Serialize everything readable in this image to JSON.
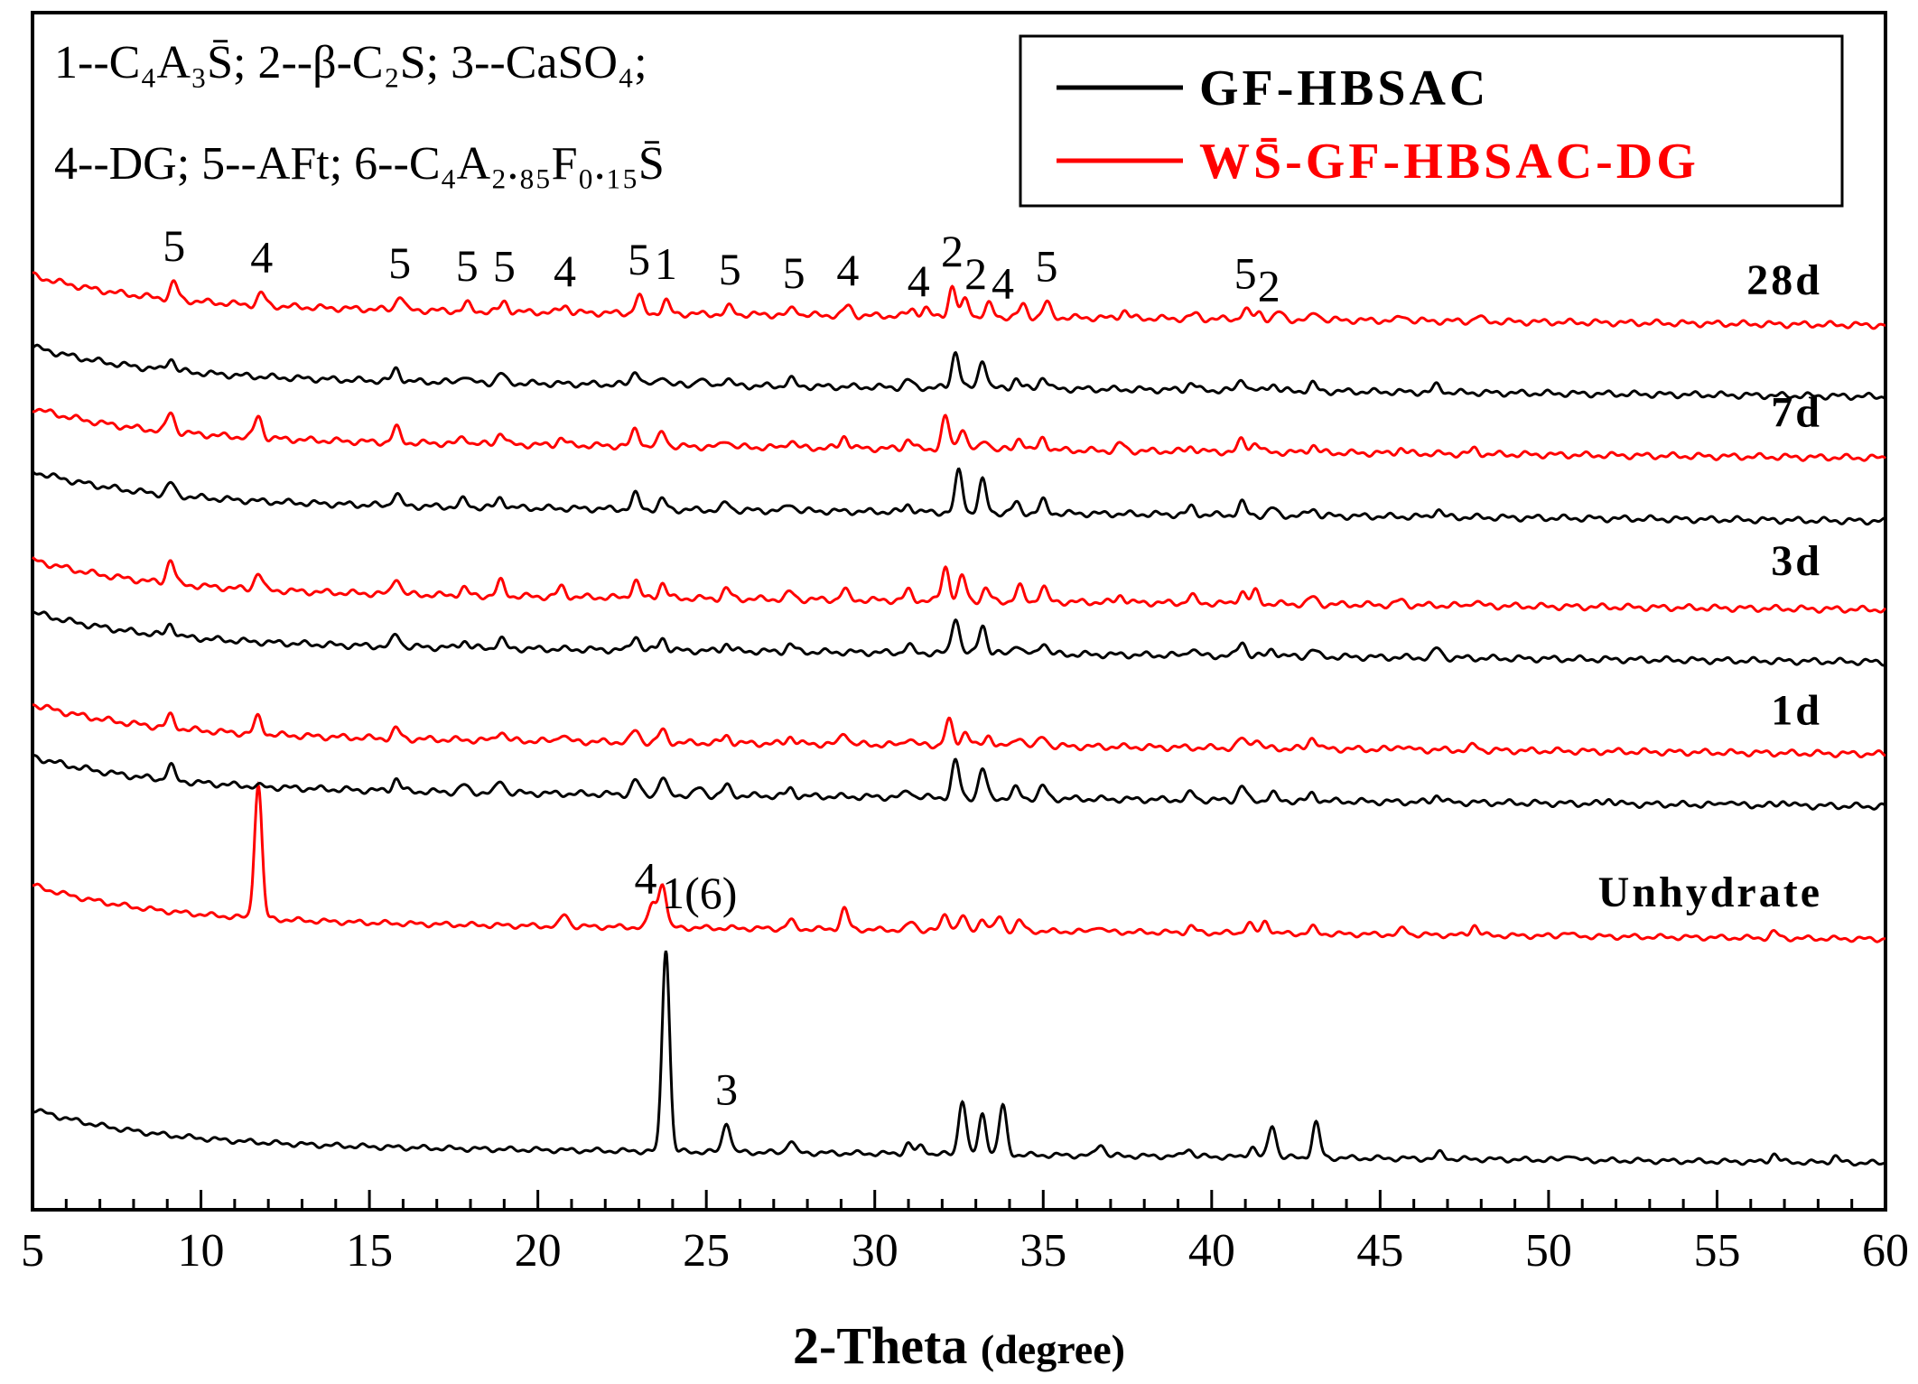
{
  "chart_data": {
    "type": "line",
    "xlabel": "2-Theta",
    "xlabel_unit": "(degree)",
    "xlim": [
      5,
      60
    ],
    "x_ticks": [
      "5",
      "10",
      "15",
      "20",
      "25",
      "30",
      "35",
      "40",
      "45",
      "50",
      "55",
      "60"
    ],
    "grid": false,
    "y_axis_labels": false,
    "legend": {
      "placement": "top-right",
      "entries": [
        {
          "name": "GF-HBSAC",
          "color": "#000000"
        },
        {
          "name": "WS̄-GF-HBSAC-DG",
          "color": "#ff0000"
        }
      ]
    },
    "phase_key": [
      {
        "line": "1--C₄A₃S̄; 2--β-C₂S; 3--CaSO₄;"
      },
      {
        "line": "4--DG; 5--AFt; 6--C₄A₂.₈₅F₀.₁₅S̄"
      }
    ],
    "series": [
      {
        "name": "GF-HBSAC",
        "group": "Unhydrate",
        "color": "#000000",
        "baseline": 0.02,
        "peaks": [
          [
            23.8,
            1.0
          ],
          [
            25.6,
            0.15
          ],
          [
            27.5,
            0.06
          ],
          [
            31.0,
            0.05
          ],
          [
            31.4,
            0.04
          ],
          [
            32.6,
            0.27
          ],
          [
            33.2,
            0.2
          ],
          [
            33.8,
            0.24
          ],
          [
            36.7,
            0.06
          ],
          [
            39.3,
            0.04
          ],
          [
            41.2,
            0.05
          ],
          [
            41.8,
            0.16
          ],
          [
            43.1,
            0.17
          ],
          [
            46.8,
            0.03
          ],
          [
            50.6,
            0.03
          ],
          [
            56.7,
            0.04
          ],
          [
            58.5,
            0.03
          ]
        ]
      },
      {
        "name": "WS̄-GF-HBSAC-DG",
        "group": "Unhydrate",
        "color": "#ff0000",
        "baseline": 0.02,
        "peaks": [
          [
            11.7,
            0.66
          ],
          [
            20.8,
            0.06
          ],
          [
            23.4,
            0.12
          ],
          [
            23.7,
            0.22
          ],
          [
            27.5,
            0.04
          ],
          [
            29.1,
            0.1
          ],
          [
            31.1,
            0.04
          ],
          [
            32.1,
            0.08
          ],
          [
            32.6,
            0.07
          ],
          [
            33.2,
            0.06
          ],
          [
            33.7,
            0.07
          ],
          [
            34.3,
            0.05
          ],
          [
            36.6,
            0.03
          ],
          [
            39.4,
            0.03
          ],
          [
            41.1,
            0.05
          ],
          [
            41.6,
            0.06
          ],
          [
            43.0,
            0.03
          ],
          [
            45.7,
            0.03
          ],
          [
            47.8,
            0.05
          ],
          [
            50.5,
            0.02
          ],
          [
            56.7,
            0.03
          ]
        ]
      },
      {
        "name": "GF-HBSAC",
        "group": "1d",
        "color": "#000000",
        "baseline": 0.0,
        "peaks": [
          [
            9.1,
            0.06
          ],
          [
            15.8,
            0.05
          ],
          [
            17.8,
            0.03
          ],
          [
            18.9,
            0.05
          ],
          [
            22.9,
            0.06
          ],
          [
            23.7,
            0.07
          ],
          [
            24.8,
            0.03
          ],
          [
            25.6,
            0.04
          ],
          [
            27.5,
            0.03
          ],
          [
            31.0,
            0.03
          ],
          [
            32.4,
            0.15
          ],
          [
            33.2,
            0.12
          ],
          [
            34.2,
            0.04
          ],
          [
            35.0,
            0.05
          ],
          [
            39.4,
            0.03
          ],
          [
            40.9,
            0.06
          ],
          [
            41.8,
            0.03
          ],
          [
            43.0,
            0.03
          ],
          [
            46.7,
            0.03
          ],
          [
            51.8,
            0.02
          ],
          [
            55.3,
            0.02
          ],
          [
            57.0,
            0.02
          ]
        ]
      },
      {
        "name": "WS̄-GF-HBSAC-DG",
        "group": "1d",
        "color": "#ff0000",
        "baseline": 0.0,
        "peaks": [
          [
            9.1,
            0.05
          ],
          [
            11.7,
            0.07
          ],
          [
            15.8,
            0.04
          ],
          [
            18.9,
            0.04
          ],
          [
            20.7,
            0.03
          ],
          [
            22.9,
            0.05
          ],
          [
            23.7,
            0.05
          ],
          [
            25.6,
            0.03
          ],
          [
            27.5,
            0.03
          ],
          [
            29.1,
            0.05
          ],
          [
            31.0,
            0.03
          ],
          [
            32.2,
            0.1
          ],
          [
            32.7,
            0.06
          ],
          [
            33.4,
            0.04
          ],
          [
            34.3,
            0.04
          ],
          [
            35.0,
            0.04
          ],
          [
            40.9,
            0.04
          ],
          [
            41.3,
            0.04
          ],
          [
            43.0,
            0.05
          ],
          [
            45.6,
            0.02
          ],
          [
            47.8,
            0.02
          ]
        ]
      },
      {
        "name": "GF-HBSAC",
        "group": "3d",
        "color": "#000000",
        "baseline": 0.0,
        "peaks": [
          [
            9.1,
            0.05
          ],
          [
            15.8,
            0.05
          ],
          [
            17.8,
            0.03
          ],
          [
            18.9,
            0.04
          ],
          [
            22.9,
            0.06
          ],
          [
            23.7,
            0.05
          ],
          [
            25.6,
            0.03
          ],
          [
            27.5,
            0.03
          ],
          [
            31.0,
            0.03
          ],
          [
            32.4,
            0.15
          ],
          [
            33.2,
            0.12
          ],
          [
            34.2,
            0.04
          ],
          [
            35.0,
            0.05
          ],
          [
            39.4,
            0.03
          ],
          [
            40.9,
            0.06
          ],
          [
            41.8,
            0.03
          ],
          [
            43.0,
            0.03
          ],
          [
            46.7,
            0.04
          ]
        ]
      },
      {
        "name": "WS̄-GF-HBSAC-DG",
        "group": "3d",
        "color": "#ff0000",
        "baseline": 0.0,
        "peaks": [
          [
            9.1,
            0.1
          ],
          [
            11.7,
            0.07
          ],
          [
            15.8,
            0.07
          ],
          [
            17.8,
            0.03
          ],
          [
            18.9,
            0.06
          ],
          [
            20.7,
            0.04
          ],
          [
            22.9,
            0.07
          ],
          [
            23.7,
            0.06
          ],
          [
            25.6,
            0.04
          ],
          [
            27.5,
            0.03
          ],
          [
            29.1,
            0.04
          ],
          [
            31.0,
            0.04
          ],
          [
            32.1,
            0.14
          ],
          [
            32.6,
            0.1
          ],
          [
            33.3,
            0.05
          ],
          [
            34.3,
            0.06
          ],
          [
            35.0,
            0.06
          ],
          [
            37.3,
            0.03
          ],
          [
            39.4,
            0.03
          ],
          [
            40.9,
            0.05
          ],
          [
            41.3,
            0.05
          ],
          [
            43.0,
            0.03
          ],
          [
            45.6,
            0.02
          ],
          [
            47.8,
            0.02
          ]
        ]
      },
      {
        "name": "GF-HBSAC",
        "group": "7d",
        "color": "#000000",
        "baseline": 0.0,
        "peaks": [
          [
            9.1,
            0.05
          ],
          [
            15.8,
            0.05
          ],
          [
            17.8,
            0.03
          ],
          [
            18.9,
            0.04
          ],
          [
            22.9,
            0.06
          ],
          [
            23.7,
            0.04
          ],
          [
            25.6,
            0.03
          ],
          [
            27.5,
            0.03
          ],
          [
            31.0,
            0.03
          ],
          [
            32.5,
            0.17
          ],
          [
            33.2,
            0.13
          ],
          [
            34.2,
            0.04
          ],
          [
            35.0,
            0.05
          ],
          [
            39.4,
            0.03
          ],
          [
            40.9,
            0.05
          ],
          [
            41.8,
            0.03
          ],
          [
            43.0,
            0.03
          ],
          [
            46.7,
            0.03
          ]
        ]
      },
      {
        "name": "WS̄-GF-HBSAC-DG",
        "group": "7d",
        "color": "#ff0000",
        "baseline": 0.0,
        "peaks": [
          [
            9.1,
            0.08
          ],
          [
            11.7,
            0.09
          ],
          [
            15.8,
            0.06
          ],
          [
            17.8,
            0.03
          ],
          [
            18.9,
            0.05
          ],
          [
            20.7,
            0.03
          ],
          [
            22.9,
            0.07
          ],
          [
            23.7,
            0.06
          ],
          [
            25.6,
            0.03
          ],
          [
            27.5,
            0.03
          ],
          [
            29.1,
            0.05
          ],
          [
            31.0,
            0.04
          ],
          [
            32.1,
            0.13
          ],
          [
            32.6,
            0.09
          ],
          [
            33.3,
            0.04
          ],
          [
            34.3,
            0.05
          ],
          [
            35.0,
            0.05
          ],
          [
            37.3,
            0.03
          ],
          [
            39.4,
            0.02
          ],
          [
            40.9,
            0.05
          ],
          [
            41.3,
            0.04
          ],
          [
            43.0,
            0.03
          ],
          [
            45.6,
            0.02
          ],
          [
            47.8,
            0.02
          ]
        ]
      },
      {
        "name": "GF-HBSAC",
        "group": "28d",
        "color": "#000000",
        "baseline": 0.0,
        "peaks": [
          [
            9.1,
            0.05
          ],
          [
            15.8,
            0.05
          ],
          [
            17.8,
            0.03
          ],
          [
            18.9,
            0.04
          ],
          [
            22.9,
            0.06
          ],
          [
            23.7,
            0.04
          ],
          [
            24.8,
            0.03
          ],
          [
            25.6,
            0.03
          ],
          [
            27.5,
            0.03
          ],
          [
            31.0,
            0.03
          ],
          [
            32.4,
            0.15
          ],
          [
            33.2,
            0.12
          ],
          [
            34.2,
            0.04
          ],
          [
            35.0,
            0.05
          ],
          [
            39.4,
            0.03
          ],
          [
            40.9,
            0.05
          ],
          [
            41.8,
            0.03
          ],
          [
            43.0,
            0.03
          ],
          [
            46.7,
            0.03
          ]
        ]
      },
      {
        "name": "WS̄-GF-HBSAC-DG",
        "group": "28d",
        "color": "#ff0000",
        "baseline": 0.0,
        "peaks": [
          [
            9.2,
            0.07
          ],
          [
            11.8,
            0.05
          ],
          [
            15.9,
            0.06
          ],
          [
            17.9,
            0.03
          ],
          [
            19.0,
            0.04
          ],
          [
            20.8,
            0.03
          ],
          [
            23.0,
            0.07
          ],
          [
            23.8,
            0.05
          ],
          [
            25.7,
            0.03
          ],
          [
            27.6,
            0.03
          ],
          [
            29.2,
            0.04
          ],
          [
            31.1,
            0.03
          ],
          [
            31.5,
            0.03
          ],
          [
            32.3,
            0.12
          ],
          [
            32.7,
            0.07
          ],
          [
            33.4,
            0.05
          ],
          [
            34.4,
            0.05
          ],
          [
            35.1,
            0.06
          ],
          [
            37.4,
            0.03
          ],
          [
            39.5,
            0.02
          ],
          [
            41.0,
            0.04
          ],
          [
            41.4,
            0.03
          ],
          [
            42.0,
            0.03
          ],
          [
            43.1,
            0.03
          ],
          [
            45.7,
            0.02
          ],
          [
            47.9,
            0.02
          ]
        ]
      }
    ],
    "annotations": [
      {
        "text": "5",
        "x": 9.2,
        "series": 9
      },
      {
        "text": "4",
        "x": 11.8,
        "series": 9
      },
      {
        "text": "5",
        "x": 15.9,
        "series": 9
      },
      {
        "text": "5",
        "x": 17.9,
        "series": 9
      },
      {
        "text": "5",
        "x": 19.0,
        "series": 9
      },
      {
        "text": "4",
        "x": 20.8,
        "series": 9
      },
      {
        "text": "5",
        "x": 23.0,
        "series": 9
      },
      {
        "text": "1",
        "x": 23.8,
        "series": 9
      },
      {
        "text": "5",
        "x": 25.7,
        "series": 9
      },
      {
        "text": "5",
        "x": 27.6,
        "series": 9
      },
      {
        "text": "4",
        "x": 29.2,
        "series": 9
      },
      {
        "text": "4",
        "x": 31.3,
        "series": 9
      },
      {
        "text": "2",
        "x": 32.3,
        "series": 9
      },
      {
        "text": "2",
        "x": 33.0,
        "series": 9
      },
      {
        "text": "4",
        "x": 33.8,
        "series": 9
      },
      {
        "text": "5",
        "x": 35.1,
        "series": 9
      },
      {
        "text": "5",
        "x": 41.0,
        "series": 9
      },
      {
        "text": "2",
        "x": 41.7,
        "series": 9
      },
      {
        "text": "4",
        "x": 23.2,
        "series": 1
      },
      {
        "text": "1(6)",
        "x": 24.8,
        "series": 1
      },
      {
        "text": "3",
        "x": 25.6,
        "series": 0
      }
    ],
    "group_labels": [
      {
        "text": "28d",
        "series": 9
      },
      {
        "text": "7d",
        "series": 7
      },
      {
        "text": "3d",
        "series": 5
      },
      {
        "text": "1d",
        "series": 3
      },
      {
        "text": "Unhydrate",
        "series": 1
      }
    ]
  }
}
